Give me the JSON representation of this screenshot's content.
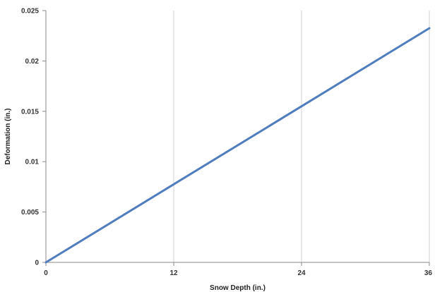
{
  "chart_data": {
    "type": "line",
    "title": "",
    "xlabel": "Snow Depth (in.)",
    "ylabel": "Deformation (in.)",
    "xlim": [
      0,
      36
    ],
    "ylim": [
      0,
      0.025
    ],
    "x_ticks": [
      0,
      12,
      24,
      36
    ],
    "x_tick_labels": [
      "0",
      "12",
      "24",
      "36"
    ],
    "y_ticks": [
      0,
      0.005,
      0.01,
      0.015,
      0.02,
      0.025
    ],
    "y_tick_labels": [
      "0",
      "0.005",
      "0.01",
      "0.015",
      "0.02",
      "0.025"
    ],
    "grid": "vertical",
    "legend": "none",
    "series": [
      {
        "x": [
          0,
          12,
          24,
          36
        ],
        "values": [
          0,
          0.00775,
          0.0155,
          0.02325
        ],
        "color": "#4f7dbe"
      }
    ]
  }
}
